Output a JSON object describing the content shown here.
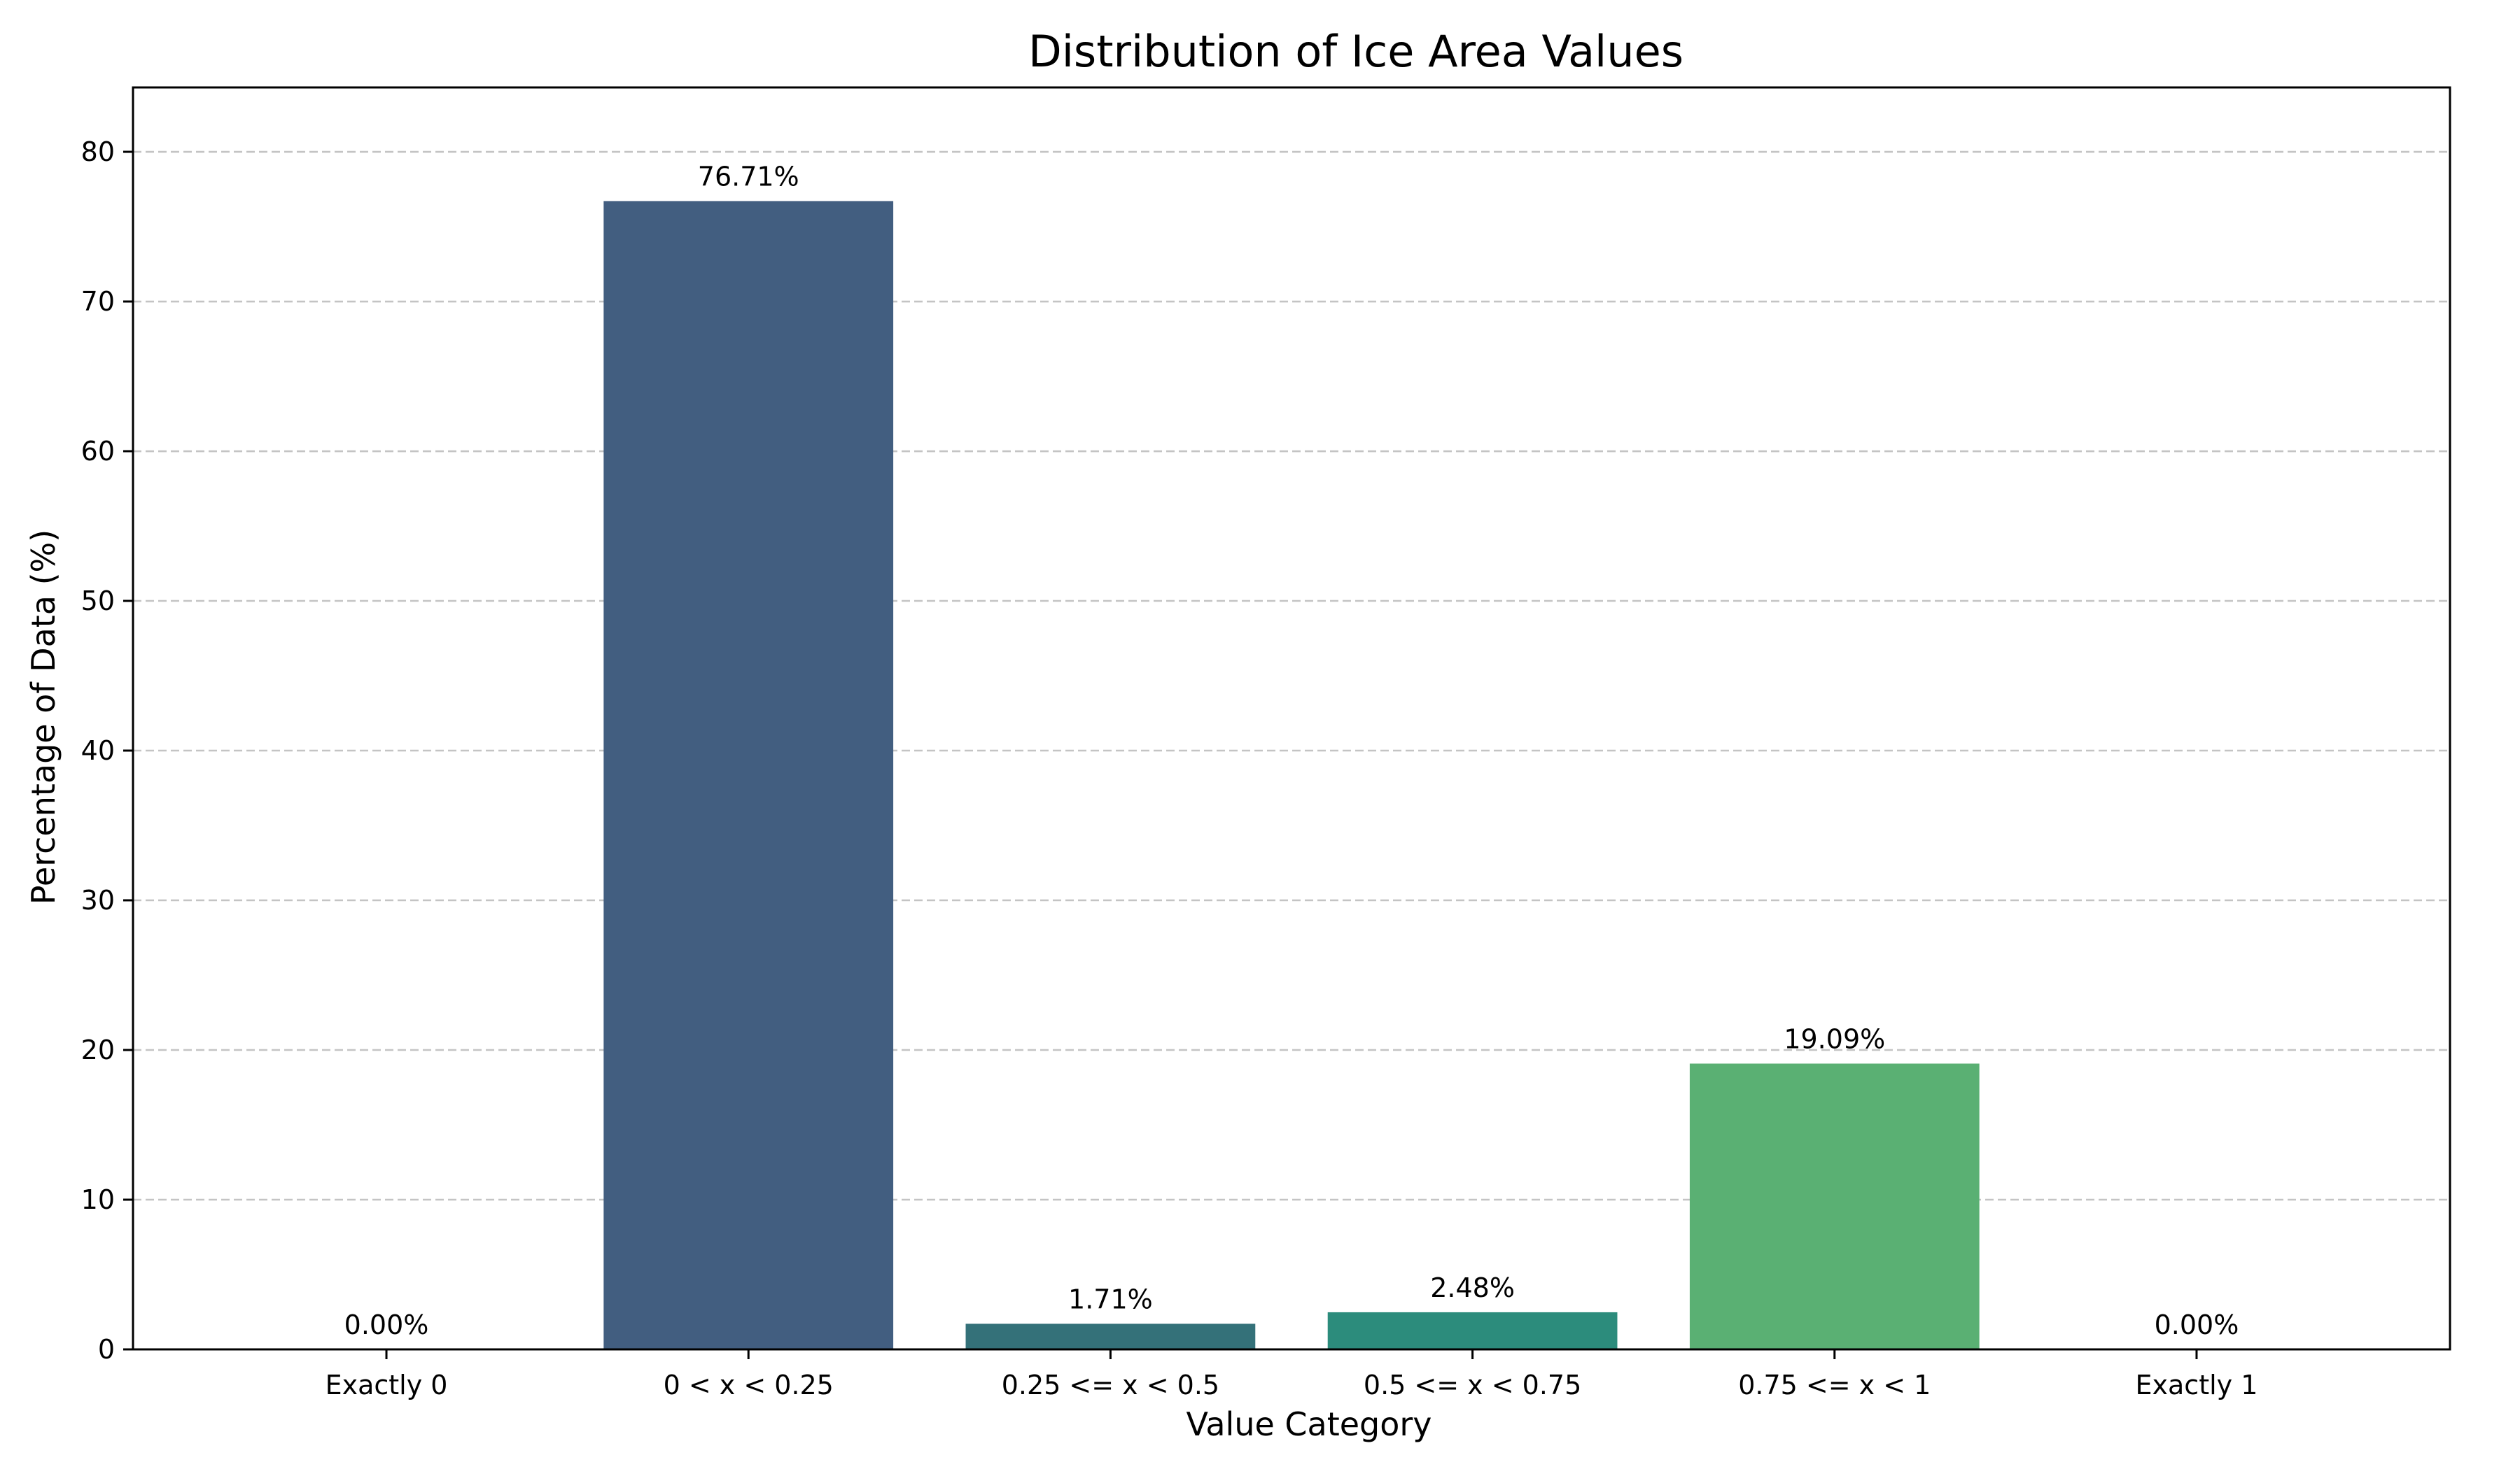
{
  "chart_data": {
    "type": "bar",
    "title": "Distribution of Ice Area Values",
    "xlabel": "Value Category",
    "ylabel": "Percentage of Data (%)",
    "categories": [
      "Exactly 0",
      "0 < x < 0.25",
      "0.25 <= x < 0.5",
      "0.5 <= x < 0.75",
      "0.75 <= x < 1",
      "Exactly 1"
    ],
    "values": [
      0.0,
      76.71,
      1.71,
      2.48,
      19.09,
      0.0
    ],
    "data_labels": [
      "0.00%",
      "76.71%",
      "1.71%",
      "2.48%",
      "19.09%",
      "0.00%"
    ],
    "bar_colors": [
      "#440154",
      "#425e80",
      "#347179",
      "#2c8c7c",
      "#5ab073",
      "#d2e21b"
    ],
    "ylim": [
      0,
      84.3
    ],
    "yticks": [
      0,
      10,
      20,
      30,
      40,
      50,
      60,
      70,
      80
    ],
    "grid": "horizontal dashed",
    "legend": "none"
  }
}
